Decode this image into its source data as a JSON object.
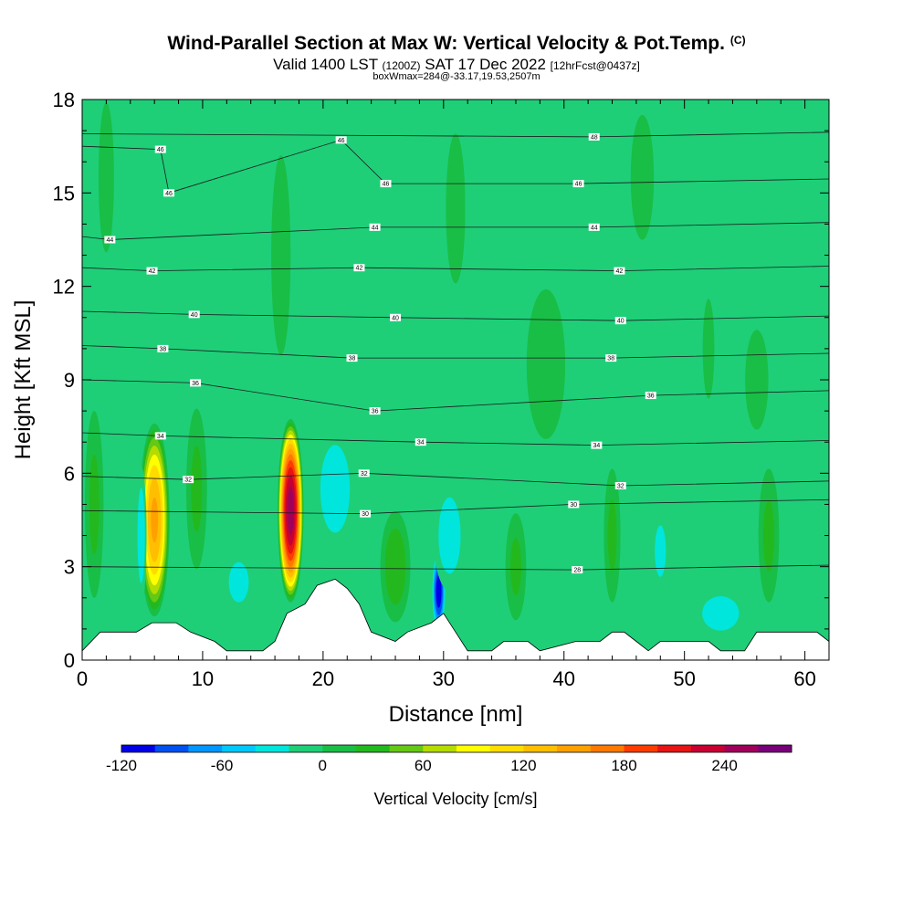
{
  "title": "Wind-Parallel Section at Max W: Vertical Velocity & Pot.Temp.",
  "title_mark": "(C)",
  "subtitle_main": "Valid 1400 LST",
  "subtitle_utc": "(1200Z)",
  "subtitle_date": "SAT 17 Dec 2022",
  "subtitle_fcst": "[12hrFcst@0437z]",
  "box_info": "boxWmax=284@-33.17,19.53,2507m",
  "colors": {
    "background": "#1ecf78",
    "terrain": "#ffffff",
    "contour": "#1a1a1a"
  },
  "chart_data": {
    "type": "heatmap",
    "xlabel": "Distance [nm]",
    "ylabel": "Height [Kft MSL]",
    "xlim": [
      0,
      62
    ],
    "ylim": [
      0,
      18
    ],
    "x_ticks": [
      "0",
      "10",
      "20",
      "30",
      "40",
      "50",
      "60"
    ],
    "x_tick_values": [
      0,
      10,
      20,
      30,
      40,
      50,
      60
    ],
    "y_ticks": [
      "0",
      "3",
      "6",
      "9",
      "12",
      "15",
      "18"
    ],
    "y_tick_values": [
      0,
      3,
      6,
      9,
      12,
      15,
      18
    ],
    "colorbar": {
      "label": "Vertical Velocity [cm/s]",
      "tick_labels": [
        "-120",
        "-60",
        "0",
        "60",
        "120",
        "180",
        "240"
      ],
      "tick_values": [
        -120,
        -60,
        0,
        60,
        120,
        180,
        240
      ],
      "range": [
        -120,
        280
      ],
      "bin_width": 20,
      "colors": [
        "#0000e6",
        "#0050f0",
        "#0096ff",
        "#00c8ff",
        "#00e6dc",
        "#1ecf78",
        "#19be46",
        "#23b91e",
        "#64c814",
        "#b4dc00",
        "#ffff00",
        "#ffdc00",
        "#ffbe00",
        "#ffa000",
        "#ff7800",
        "#ff3c00",
        "#e61414",
        "#c80032",
        "#a0005a",
        "#780078"
      ]
    },
    "terrain_kft": [
      [
        0,
        0.3
      ],
      [
        1.5,
        0.9
      ],
      [
        4.5,
        0.9
      ],
      [
        5.8,
        1.2
      ],
      [
        7.8,
        1.2
      ],
      [
        9,
        0.9
      ],
      [
        11,
        0.6
      ],
      [
        12,
        0.3
      ],
      [
        15,
        0.3
      ],
      [
        16,
        0.6
      ],
      [
        17,
        1.5
      ],
      [
        18.5,
        1.8
      ],
      [
        19.5,
        2.4
      ],
      [
        21,
        2.6
      ],
      [
        22,
        2.3
      ],
      [
        23,
        1.8
      ],
      [
        24,
        0.9
      ],
      [
        26,
        0.6
      ],
      [
        27,
        0.9
      ],
      [
        29,
        1.2
      ],
      [
        30,
        1.5
      ],
      [
        31,
        0.9
      ],
      [
        32,
        0.3
      ],
      [
        34,
        0.3
      ],
      [
        35,
        0.6
      ],
      [
        37,
        0.6
      ],
      [
        38,
        0.3
      ],
      [
        41,
        0.6
      ],
      [
        43,
        0.6
      ],
      [
        44,
        0.9
      ],
      [
        45,
        0.9
      ],
      [
        46,
        0.6
      ],
      [
        47,
        0.3
      ],
      [
        48,
        0.6
      ],
      [
        52,
        0.6
      ],
      [
        53,
        0.3
      ],
      [
        55,
        0.3
      ],
      [
        56,
        0.9
      ],
      [
        61,
        0.9
      ],
      [
        62,
        0.6
      ]
    ],
    "w_features": [
      {
        "x": 6.0,
        "y": 4.5,
        "peak": 150,
        "width_nm": 1.3,
        "height_kft": 3.2
      },
      {
        "x": 17.3,
        "y": 4.8,
        "peak": 260,
        "width_nm": 1.1,
        "height_kft": 3.0
      },
      {
        "x": 29.6,
        "y": 2.2,
        "peak": -120,
        "width_nm": 0.6,
        "height_kft": 1.4
      },
      {
        "x": 4.9,
        "y": 4.0,
        "peak": -40,
        "width_nm": 0.5,
        "height_kft": 2.5
      },
      {
        "x": 13.0,
        "y": 2.5,
        "peak": -30,
        "width_nm": 1.8,
        "height_kft": 1.4
      },
      {
        "x": 21.0,
        "y": 5.5,
        "peak": -40,
        "width_nm": 2.0,
        "height_kft": 2.3
      },
      {
        "x": 30.5,
        "y": 4.0,
        "peak": -40,
        "width_nm": 1.5,
        "height_kft": 2.0
      },
      {
        "x": 48.0,
        "y": 3.5,
        "peak": -30,
        "width_nm": 1.0,
        "height_kft": 1.8
      },
      {
        "x": 53.0,
        "y": 1.5,
        "peak": -40,
        "width_nm": 2.5,
        "height_kft": 0.9
      },
      {
        "x": 1.0,
        "y": 5.0,
        "peak": 30,
        "width_nm": 0.9,
        "height_kft": 3.5
      },
      {
        "x": 9.5,
        "y": 5.5,
        "peak": 30,
        "width_nm": 1.0,
        "height_kft": 3.0
      },
      {
        "x": 26.0,
        "y": 3.0,
        "peak": 40,
        "width_nm": 1.4,
        "height_kft": 2.0
      },
      {
        "x": 36.0,
        "y": 3.0,
        "peak": 30,
        "width_nm": 1.0,
        "height_kft": 2.0
      },
      {
        "x": 44.0,
        "y": 4.0,
        "peak": 30,
        "width_nm": 0.8,
        "height_kft": 2.5
      },
      {
        "x": 57.0,
        "y": 4.0,
        "peak": 30,
        "width_nm": 1.0,
        "height_kft": 2.5
      },
      {
        "x": 16.5,
        "y": 13.0,
        "peak": 20,
        "width_nm": 1.0,
        "height_kft": 4.0
      },
      {
        "x": 31.0,
        "y": 14.5,
        "peak": 20,
        "width_nm": 1.0,
        "height_kft": 3.0
      },
      {
        "x": 38.5,
        "y": 9.5,
        "peak": 20,
        "width_nm": 2.0,
        "height_kft": 3.0
      },
      {
        "x": 46.5,
        "y": 15.5,
        "peak": 20,
        "width_nm": 1.2,
        "height_kft": 2.5
      },
      {
        "x": 52.0,
        "y": 10.0,
        "peak": 20,
        "width_nm": 0.6,
        "height_kft": 2.0
      },
      {
        "x": 56.0,
        "y": 9.0,
        "peak": 20,
        "width_nm": 1.2,
        "height_kft": 2.0
      },
      {
        "x": 2.0,
        "y": 15.5,
        "peak": 20,
        "width_nm": 0.8,
        "height_kft": 3.0
      }
    ],
    "theta_contour_labels": [
      {
        "text": "46",
        "x": 6.5,
        "y": 16.4
      },
      {
        "text": "46",
        "x": 21.5,
        "y": 16.7
      },
      {
        "text": "48",
        "x": 42.5,
        "y": 16.8
      },
      {
        "text": "46",
        "x": 7.2,
        "y": 15.0
      },
      {
        "text": "46",
        "x": 25.2,
        "y": 15.3
      },
      {
        "text": "46",
        "x": 41.2,
        "y": 15.3
      },
      {
        "text": "44",
        "x": 2.3,
        "y": 13.5
      },
      {
        "text": "44",
        "x": 24.3,
        "y": 13.9
      },
      {
        "text": "44",
        "x": 42.5,
        "y": 13.9
      },
      {
        "text": "42",
        "x": 5.8,
        "y": 12.5
      },
      {
        "text": "42",
        "x": 23.0,
        "y": 12.6
      },
      {
        "text": "42",
        "x": 44.6,
        "y": 12.5
      },
      {
        "text": "40",
        "x": 9.3,
        "y": 11.1
      },
      {
        "text": "40",
        "x": 26.0,
        "y": 11.0
      },
      {
        "text": "40",
        "x": 44.7,
        "y": 10.9
      },
      {
        "text": "38",
        "x": 6.7,
        "y": 10.0
      },
      {
        "text": "38",
        "x": 22.4,
        "y": 9.7
      },
      {
        "text": "38",
        "x": 43.9,
        "y": 9.7
      },
      {
        "text": "36",
        "x": 9.4,
        "y": 8.9
      },
      {
        "text": "36",
        "x": 47.2,
        "y": 8.5
      },
      {
        "text": "36",
        "x": 24.3,
        "y": 8.0
      },
      {
        "text": "34",
        "x": 6.5,
        "y": 7.2
      },
      {
        "text": "34",
        "x": 28.1,
        "y": 7.0
      },
      {
        "text": "34",
        "x": 42.7,
        "y": 6.9
      },
      {
        "text": "32",
        "x": 8.8,
        "y": 5.8
      },
      {
        "text": "32",
        "x": 23.4,
        "y": 6.0
      },
      {
        "text": "32",
        "x": 44.7,
        "y": 5.6
      },
      {
        "text": "30",
        "x": 40.8,
        "y": 5.0
      },
      {
        "text": "30",
        "x": 23.5,
        "y": 4.7
      },
      {
        "text": "28",
        "x": 41.1,
        "y": 2.9
      }
    ]
  }
}
